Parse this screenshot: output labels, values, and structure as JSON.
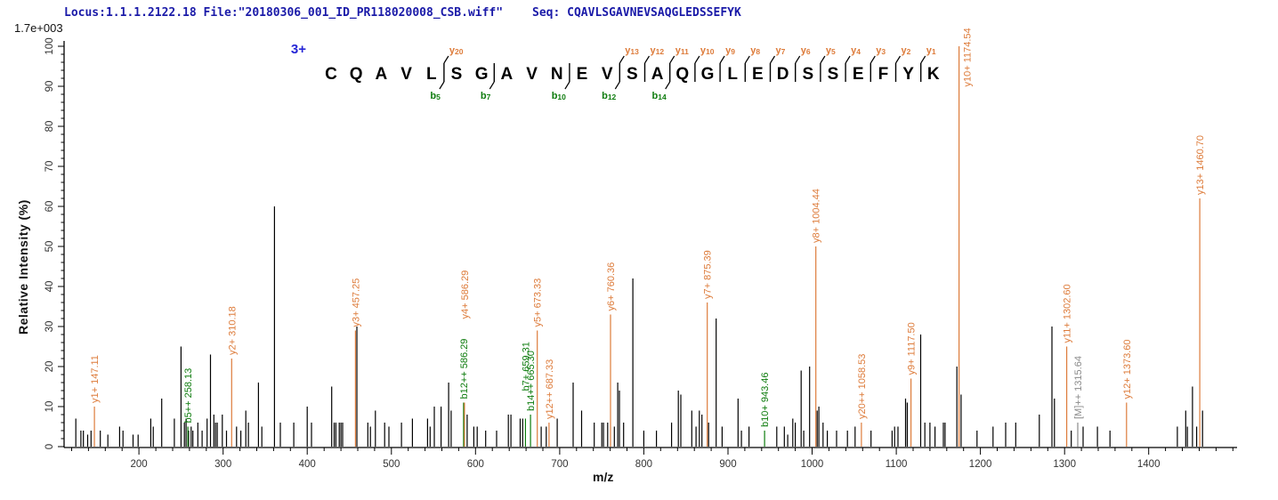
{
  "header": {
    "locus_file": "Locus:1.1.1.2122.18 File:\"20180306_001_ID_PR118020008_CSB.wiff\"",
    "seq_label": "Seq: CQAVLSGAVNEVSAQGLEDSSEFYK"
  },
  "scale_label": "1.7e+003",
  "axes": {
    "x_title": "m/z",
    "y_title": "Relative  Intensity (%)"
  },
  "colors": {
    "y_ion": "#dd7b3a",
    "b_ion": "#0e7c0e",
    "precursor": "#8a8a8a",
    "peak": "#000000",
    "charge": "#2525d6",
    "header_text": "#1a1aa8",
    "tick_text": "#333333"
  },
  "sequence": {
    "charge_label": "3+",
    "residues": [
      "C",
      "Q",
      "A",
      "V",
      "L",
      "S",
      "G",
      "A",
      "V",
      "N",
      "E",
      "V",
      "S",
      "A",
      "Q",
      "G",
      "L",
      "E",
      "D",
      "S",
      "S",
      "E",
      "F",
      "Y",
      "K"
    ],
    "y_ions": [
      {
        "num": "20",
        "after": 5
      },
      {
        "num": "13",
        "after": 12
      },
      {
        "num": "12",
        "after": 13
      },
      {
        "num": "11",
        "after": 14
      },
      {
        "num": "10",
        "after": 15
      },
      {
        "num": "9",
        "after": 16
      },
      {
        "num": "8",
        "after": 17
      },
      {
        "num": "7",
        "after": 18
      },
      {
        "num": "6",
        "after": 19
      },
      {
        "num": "5",
        "after": 20
      },
      {
        "num": "4",
        "after": 21
      },
      {
        "num": "3",
        "after": 22
      },
      {
        "num": "2",
        "after": 23
      },
      {
        "num": "1",
        "after": 24
      }
    ],
    "b_ions": [
      {
        "num": "5",
        "after": 5
      },
      {
        "num": "7",
        "after": 7
      },
      {
        "num": "10",
        "after": 10
      },
      {
        "num": "12",
        "after": 12
      },
      {
        "num": "14",
        "after": 14
      }
    ]
  },
  "chart_data": {
    "type": "bar",
    "subtype": "ms2-centroid-spectrum",
    "title": "MS/MS fragment spectrum of CQAVLSGAVNEVSAQGLEDSSEFYK (3+)",
    "xlabel": "m/z",
    "ylabel": "Relative Intensity (%)",
    "x_range": [
      111,
      1505
    ],
    "y_range": [
      0,
      100
    ],
    "x_major_ticks": [
      200,
      300,
      400,
      500,
      600,
      700,
      800,
      900,
      1000,
      1100,
      1200,
      1300,
      1400
    ],
    "x_minor_step": 20,
    "y_major_step": 10,
    "y_minor_step": 2,
    "grid": false,
    "base_peak_intensity_label": "1.7e+003",
    "peaks": [
      [
        125,
        7
      ],
      [
        131,
        4
      ],
      [
        134,
        4
      ],
      [
        139,
        3
      ],
      [
        143,
        4
      ],
      [
        154,
        4
      ],
      [
        163,
        3
      ],
      [
        177,
        5
      ],
      [
        181,
        4
      ],
      [
        193,
        3
      ],
      [
        199,
        3
      ],
      [
        214,
        7
      ],
      [
        217,
        5
      ],
      [
        227,
        12
      ],
      [
        242,
        7
      ],
      [
        250,
        25
      ],
      [
        254,
        6
      ],
      [
        256,
        7
      ],
      [
        259,
        4
      ],
      [
        262,
        5
      ],
      [
        264,
        4
      ],
      [
        270,
        6
      ],
      [
        275,
        4
      ],
      [
        281,
        7
      ],
      [
        285,
        23
      ],
      [
        289,
        8
      ],
      [
        291,
        6
      ],
      [
        293,
        6
      ],
      [
        299,
        8
      ],
      [
        304,
        4
      ],
      [
        316,
        5
      ],
      [
        321,
        4
      ],
      [
        327,
        9
      ],
      [
        330,
        6
      ],
      [
        342,
        16
      ],
      [
        346,
        5
      ],
      [
        361,
        60
      ],
      [
        368,
        6
      ],
      [
        384,
        6
      ],
      [
        400,
        10
      ],
      [
        405,
        6
      ],
      [
        429,
        15
      ],
      [
        432,
        6
      ],
      [
        434,
        6
      ],
      [
        438,
        6
      ],
      [
        440,
        6
      ],
      [
        442,
        6
      ],
      [
        459,
        30
      ],
      [
        472,
        6
      ],
      [
        475,
        5
      ],
      [
        481,
        9
      ],
      [
        492,
        6
      ],
      [
        497,
        5
      ],
      [
        512,
        6
      ],
      [
        525,
        7
      ],
      [
        543,
        7
      ],
      [
        546,
        5
      ],
      [
        551,
        10
      ],
      [
        559,
        10
      ],
      [
        568,
        16
      ],
      [
        571,
        9
      ],
      [
        590,
        8
      ],
      [
        598,
        5
      ],
      [
        602,
        5
      ],
      [
        612,
        4
      ],
      [
        625,
        4
      ],
      [
        639,
        8
      ],
      [
        642,
        8
      ],
      [
        653,
        7
      ],
      [
        656,
        7
      ],
      [
        678,
        5
      ],
      [
        684,
        5
      ],
      [
        697,
        7
      ],
      [
        716,
        16
      ],
      [
        726,
        9
      ],
      [
        741,
        6
      ],
      [
        750,
        6
      ],
      [
        752,
        6
      ],
      [
        757,
        6
      ],
      [
        765,
        5
      ],
      [
        769,
        16
      ],
      [
        771,
        14
      ],
      [
        776,
        6
      ],
      [
        787,
        42
      ],
      [
        800,
        4
      ],
      [
        815,
        4
      ],
      [
        833,
        6
      ],
      [
        841,
        14
      ],
      [
        844,
        13
      ],
      [
        857,
        9
      ],
      [
        862,
        5
      ],
      [
        866,
        9
      ],
      [
        869,
        8
      ],
      [
        877,
        6
      ],
      [
        886,
        32
      ],
      [
        893,
        5
      ],
      [
        912,
        12
      ],
      [
        916,
        4
      ],
      [
        925,
        5
      ],
      [
        958,
        5
      ],
      [
        967,
        5
      ],
      [
        971,
        3
      ],
      [
        977,
        7
      ],
      [
        980,
        6
      ],
      [
        987,
        19
      ],
      [
        990,
        4
      ],
      [
        997,
        20
      ],
      [
        1006,
        9
      ],
      [
        1008,
        10
      ],
      [
        1013,
        6
      ],
      [
        1018,
        4
      ],
      [
        1029,
        4
      ],
      [
        1042,
        4
      ],
      [
        1051,
        5
      ],
      [
        1070,
        4
      ],
      [
        1095,
        4
      ],
      [
        1098,
        5
      ],
      [
        1102,
        5
      ],
      [
        1111,
        12
      ],
      [
        1113,
        11
      ],
      [
        1129,
        28
      ],
      [
        1134,
        6
      ],
      [
        1140,
        6
      ],
      [
        1146,
        5
      ],
      [
        1156,
        6
      ],
      [
        1158,
        6
      ],
      [
        1172,
        20
      ],
      [
        1177,
        13
      ],
      [
        1196,
        4
      ],
      [
        1215,
        5
      ],
      [
        1230,
        6
      ],
      [
        1242,
        6
      ],
      [
        1270,
        8
      ],
      [
        1285,
        30
      ],
      [
        1288,
        12
      ],
      [
        1308,
        4
      ],
      [
        1322,
        5
      ],
      [
        1339,
        5
      ],
      [
        1354,
        4
      ],
      [
        1434,
        5
      ],
      [
        1444,
        9
      ],
      [
        1446,
        5
      ],
      [
        1452,
        15
      ],
      [
        1457,
        5
      ],
      [
        1464,
        9
      ]
    ],
    "annotated_peaks": [
      {
        "mz": 147.11,
        "i": 10,
        "type": "y",
        "label": "y1+ 147.11"
      },
      {
        "mz": 258.13,
        "i": 5,
        "type": "b",
        "label": "b5++ 258.13"
      },
      {
        "mz": 310.18,
        "i": 22,
        "type": "y",
        "label": "y2+ 310.18"
      },
      {
        "mz": 457.25,
        "i": 29,
        "type": "y",
        "label": "y3+ 457.25"
      },
      {
        "mz": 585.8,
        "i": 11,
        "type": "b",
        "label": "b12++ 586.29"
      },
      {
        "mz": 586.8,
        "i": 11,
        "type": "y",
        "label": "y4+ 586.29",
        "label_base": 31
      },
      {
        "mz": 659.31,
        "i": 7,
        "type": "b",
        "label": "b7+ 659.31",
        "label_base": 13
      },
      {
        "mz": 665.3,
        "i": 8,
        "type": "b",
        "label": "b14++ 665.30"
      },
      {
        "mz": 673.33,
        "i": 29,
        "type": "y",
        "label": "y5+ 673.33"
      },
      {
        "mz": 687.33,
        "i": 6,
        "type": "y",
        "label": "y12++ 687.33"
      },
      {
        "mz": 760.36,
        "i": 33,
        "type": "y",
        "label": "y6+ 760.36"
      },
      {
        "mz": 875.39,
        "i": 36,
        "type": "y",
        "label": "y7+ 875.39"
      },
      {
        "mz": 943.46,
        "i": 4,
        "type": "b",
        "label": "b10+ 943.46"
      },
      {
        "mz": 1004.44,
        "i": 50,
        "type": "y",
        "label": "y8+ 1004.44"
      },
      {
        "mz": 1058.53,
        "i": 6,
        "type": "y",
        "label": "y20++ 1058.53"
      },
      {
        "mz": 1117.5,
        "i": 17,
        "type": "y",
        "label": "y9+ 1117.50"
      },
      {
        "mz": 1174.54,
        "i": 100,
        "type": "y",
        "label": "y10+ 1174.54",
        "label_base": 89,
        "label_dx": 9
      },
      {
        "mz": 1302.6,
        "i": 25,
        "type": "y",
        "label": "y11+ 1302.60"
      },
      {
        "mz": 1315.64,
        "i": 6,
        "type": "M",
        "label": "[M]++ 1315.64"
      },
      {
        "mz": 1373.6,
        "i": 11,
        "type": "y",
        "label": "y12+ 1373.60"
      },
      {
        "mz": 1460.7,
        "i": 62,
        "type": "y",
        "label": "y13+ 1460.70"
      }
    ]
  }
}
